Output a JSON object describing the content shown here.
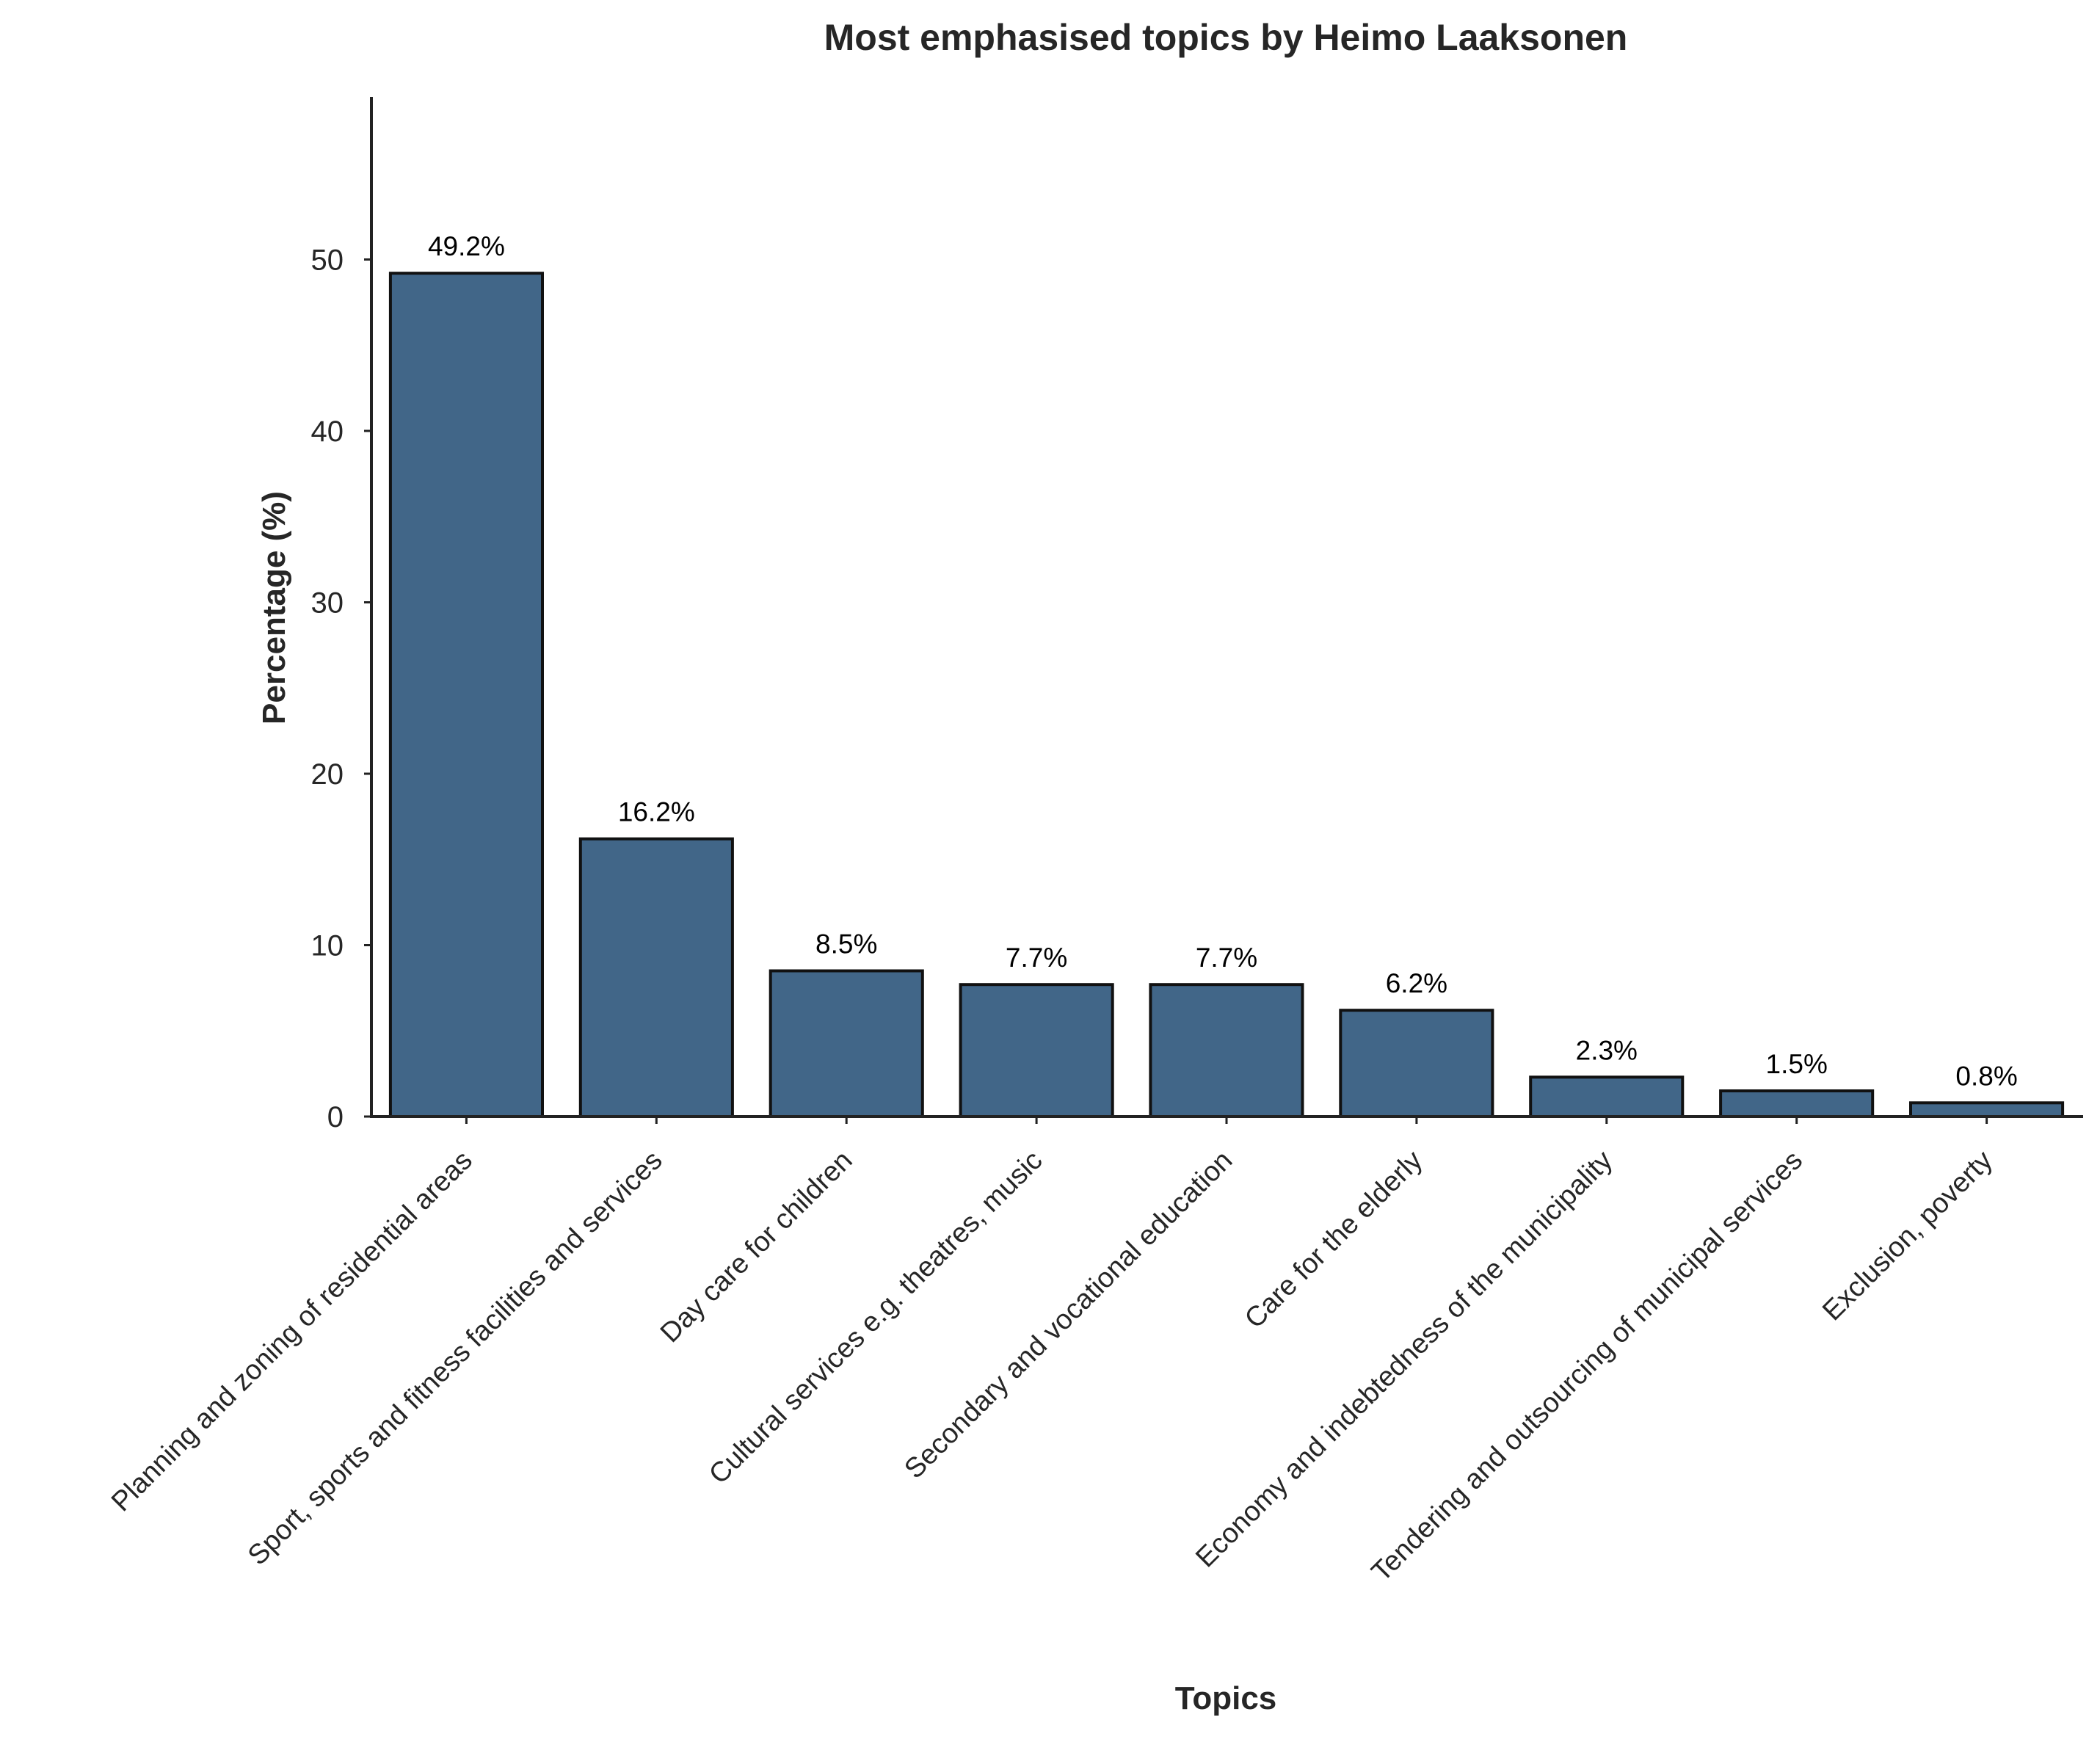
{
  "chart_data": {
    "type": "bar",
    "title": "Most emphasised topics by Heimo Laaksonen",
    "xlabel": "Topics",
    "ylabel": "Percentage (%)",
    "categories": [
      "Planning and zoning of residential areas",
      "Sport, sports and fitness facilities and services",
      "Day care for children",
      "Cultural services e.g. theatres, music",
      "Secondary and vocational education",
      "Care for the elderly",
      "Economy and indebtedness of the municipality",
      "Tendering and outsourcing of municipal services",
      "Exclusion, poverty"
    ],
    "values": [
      49.2,
      16.2,
      8.5,
      7.7,
      7.7,
      6.2,
      2.3,
      1.5,
      0.8
    ],
    "value_labels": [
      "49.2%",
      "16.2%",
      "8.5%",
      "7.7%",
      "7.7%",
      "6.2%",
      "2.3%",
      "1.5%",
      "0.8%"
    ],
    "yticks": [
      0,
      10,
      20,
      30,
      40,
      50
    ],
    "ylim": [
      0,
      59.2
    ],
    "grid": false,
    "legend": "none",
    "colors": {
      "bar_fill": "#416688",
      "bar_edge": "#111111",
      "axis": "#222222",
      "text": "#262626",
      "value_label": "#000000"
    }
  }
}
